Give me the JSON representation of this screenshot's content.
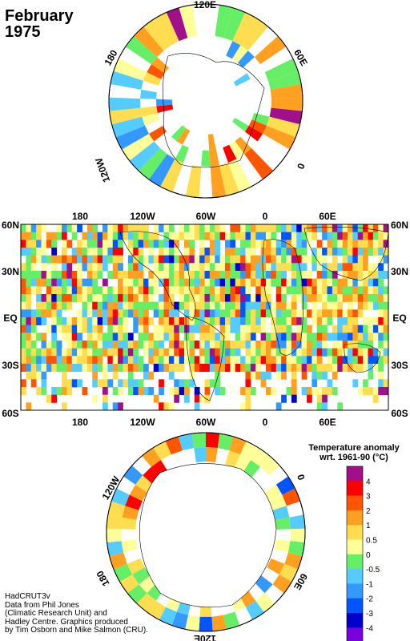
{
  "title": {
    "line1": "February",
    "line2": "1975"
  },
  "north_polar_labels": [
    "120E",
    "60E",
    "0",
    "120W",
    "180"
  ],
  "map_top_labels": [
    "180",
    "120W",
    "60W",
    "0",
    "60E"
  ],
  "map_bottom_labels": [
    "180",
    "120W",
    "60W",
    "0",
    "60E"
  ],
  "map_left_labels": [
    "60N",
    "30N",
    "EQ",
    "30S",
    "60S"
  ],
  "map_right_labels": [
    "60N",
    "30N",
    "EQ",
    "30S",
    "60S"
  ],
  "south_polar_labels": [
    "120W",
    "0",
    "60E",
    "120E",
    "180"
  ],
  "legend": {
    "title_line1": "Temperature anomaly",
    "title_line2": "wrt. 1961-90  (°C)",
    "levels": [
      "4",
      "3",
      "2",
      "1",
      "0.5",
      "0",
      "-0.5",
      "-1",
      "-2",
      "-3",
      "-4"
    ],
    "colors": [
      "#a0108a",
      "#ff0000",
      "#ff5500",
      "#ffa020",
      "#ffdd50",
      "#ffff99",
      "#66ee66",
      "#55ccff",
      "#3399ff",
      "#0055ff",
      "#0000cc",
      "#7700dd"
    ]
  },
  "credits": [
    "HadCRUT3v",
    "Data from Phil Jones",
    "(Climatic Research Unit) and",
    "Hadley Centre.  Graphics produced",
    "by Tim Osborn and Mike Salmon (CRU)."
  ]
}
